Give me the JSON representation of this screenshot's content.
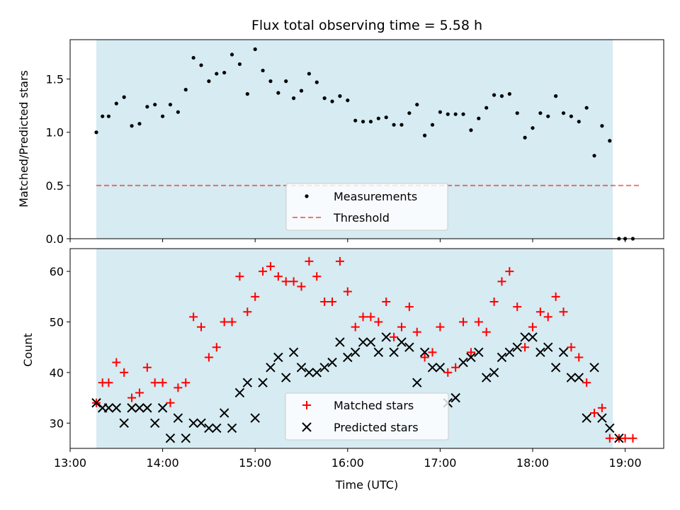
{
  "colors": {
    "background": "#ffffff",
    "observing_window": "#add8e6",
    "measurement": "#000000",
    "threshold": "#ff0000",
    "matched": "#ff0000",
    "predicted": "#000000"
  },
  "chart_data": [
    {
      "type": "scatter",
      "title": "Flux total observing time = 5.58 h",
      "xlabel": "",
      "ylabel": "Matched/Predicted stars",
      "x_axis": "time_utc",
      "xlim": [
        "13:00",
        "19:25"
      ],
      "ylim": [
        0,
        1.87
      ],
      "yticks": [
        0.0,
        0.5,
        1.0,
        1.5
      ],
      "ytick_labels": [
        "0.0",
        "0.5",
        "1.0",
        "1.5"
      ],
      "grid": false,
      "legend_position": "lower-center",
      "shaded_span": [
        "13:17",
        "18:52"
      ],
      "threshold": {
        "value": 0.5,
        "from": "13:17",
        "to": "19:10"
      },
      "legend": {
        "measurements_label": "Measurements",
        "threshold_label": "Threshold"
      },
      "series": [
        {
          "name": "Measurements",
          "marker": "dot",
          "x": [
            "13:17",
            "13:21",
            "13:25",
            "13:30",
            "13:35",
            "13:40",
            "13:45",
            "13:50",
            "13:55",
            "14:00",
            "14:05",
            "14:10",
            "14:15",
            "14:20",
            "14:25",
            "14:30",
            "14:35",
            "14:40",
            "14:45",
            "14:50",
            "14:55",
            "15:00",
            "15:05",
            "15:10",
            "15:15",
            "15:20",
            "15:25",
            "15:30",
            "15:35",
            "15:40",
            "15:45",
            "15:50",
            "15:55",
            "16:00",
            "16:05",
            "16:10",
            "16:15",
            "16:20",
            "16:25",
            "16:30",
            "16:35",
            "16:40",
            "16:45",
            "16:50",
            "16:55",
            "17:00",
            "17:05",
            "17:10",
            "17:15",
            "17:20",
            "17:25",
            "17:30",
            "17:35",
            "17:40",
            "17:45",
            "17:50",
            "17:55",
            "18:00",
            "18:05",
            "18:10",
            "18:15",
            "18:20",
            "18:25",
            "18:30",
            "18:35",
            "18:40",
            "18:45",
            "18:50",
            "18:56",
            "19:00",
            "19:05"
          ],
          "y": [
            1.0,
            1.15,
            1.15,
            1.27,
            1.33,
            1.06,
            1.08,
            1.24,
            1.26,
            1.15,
            1.26,
            1.19,
            1.4,
            1.7,
            1.63,
            1.48,
            1.55,
            1.56,
            1.73,
            1.64,
            1.36,
            1.78,
            1.58,
            1.48,
            1.37,
            1.48,
            1.32,
            1.39,
            1.55,
            1.47,
            1.32,
            1.29,
            1.34,
            1.3,
            1.11,
            1.1,
            1.1,
            1.13,
            1.14,
            1.07,
            1.07,
            1.18,
            1.26,
            0.97,
            1.07,
            1.19,
            1.17,
            1.17,
            1.17,
            1.02,
            1.13,
            1.23,
            1.35,
            1.34,
            1.36,
            1.18,
            0.95,
            1.04,
            1.18,
            1.15,
            1.34,
            1.18,
            1.15,
            1.1,
            1.23,
            0.78,
            1.06,
            0.92,
            0.0,
            0.0,
            0.0
          ]
        }
      ]
    },
    {
      "type": "scatter",
      "title": "",
      "xlabel": "Time (UTC)",
      "ylabel": "Count",
      "x_axis": "time_utc",
      "xlim": [
        "13:00",
        "19:25"
      ],
      "ylim": [
        25,
        64.5
      ],
      "yticks": [
        30,
        40,
        50,
        60
      ],
      "ytick_labels": [
        "30",
        "40",
        "50",
        "60"
      ],
      "xticks": [
        "13:00",
        "14:00",
        "15:00",
        "16:00",
        "17:00",
        "18:00",
        "19:00"
      ],
      "xtick_labels": [
        "13:00",
        "14:00",
        "15:00",
        "16:00",
        "17:00",
        "18:00",
        "19:00"
      ],
      "grid": false,
      "legend_position": "lower-center",
      "shaded_span": [
        "13:17",
        "18:52"
      ],
      "series": [
        {
          "name": "Matched stars",
          "marker": "plus",
          "x": [
            "13:17",
            "13:21",
            "13:25",
            "13:30",
            "13:35",
            "13:40",
            "13:45",
            "13:50",
            "13:55",
            "14:00",
            "14:05",
            "14:10",
            "14:15",
            "14:20",
            "14:25",
            "14:30",
            "14:35",
            "14:40",
            "14:45",
            "14:50",
            "14:55",
            "15:00",
            "15:05",
            "15:10",
            "15:15",
            "15:20",
            "15:25",
            "15:30",
            "15:35",
            "15:40",
            "15:45",
            "15:50",
            "15:55",
            "16:00",
            "16:05",
            "16:10",
            "16:15",
            "16:20",
            "16:25",
            "16:30",
            "16:35",
            "16:40",
            "16:45",
            "16:50",
            "16:55",
            "17:00",
            "17:05",
            "17:10",
            "17:15",
            "17:20",
            "17:25",
            "17:30",
            "17:35",
            "17:40",
            "17:45",
            "17:50",
            "17:55",
            "18:00",
            "18:05",
            "18:10",
            "18:15",
            "18:20",
            "18:25",
            "18:30",
            "18:35",
            "18:40",
            "18:45",
            "18:50",
            "18:56",
            "19:00",
            "19:05"
          ],
          "y": [
            34,
            38,
            38,
            42,
            40,
            35,
            36,
            41,
            38,
            38,
            34,
            37,
            38,
            51,
            49,
            43,
            45,
            50,
            50,
            59,
            52,
            55,
            60,
            61,
            59,
            58,
            58,
            57,
            62,
            59,
            54,
            54,
            62,
            56,
            49,
            51,
            51,
            50,
            54,
            47,
            49,
            53,
            48,
            43,
            44,
            49,
            40,
            41,
            50,
            44,
            50,
            48,
            54,
            58,
            60,
            53,
            45,
            49,
            52,
            51,
            55,
            52,
            45,
            43,
            38,
            32,
            33,
            27,
            27,
            27,
            27
          ]
        },
        {
          "name": "Predicted stars",
          "marker": "x",
          "x": [
            "13:17",
            "13:21",
            "13:25",
            "13:30",
            "13:35",
            "13:40",
            "13:45",
            "13:50",
            "13:55",
            "14:00",
            "14:05",
            "14:10",
            "14:15",
            "14:20",
            "14:25",
            "14:30",
            "14:35",
            "14:40",
            "14:45",
            "14:50",
            "14:55",
            "15:00",
            "15:05",
            "15:10",
            "15:15",
            "15:20",
            "15:25",
            "15:30",
            "15:35",
            "15:40",
            "15:45",
            "15:50",
            "15:55",
            "16:00",
            "16:05",
            "16:10",
            "16:15",
            "16:20",
            "16:25",
            "16:30",
            "16:35",
            "16:40",
            "16:45",
            "16:50",
            "16:55",
            "17:00",
            "17:05",
            "17:10",
            "17:15",
            "17:20",
            "17:25",
            "17:30",
            "17:35",
            "17:40",
            "17:45",
            "17:50",
            "17:55",
            "18:00",
            "18:05",
            "18:10",
            "18:15",
            "18:20",
            "18:25",
            "18:30",
            "18:35",
            "18:40",
            "18:45",
            "18:50",
            "18:56"
          ],
          "y": [
            34,
            33,
            33,
            33,
            30,
            33,
            33,
            33,
            30,
            33,
            27,
            31,
            27,
            30,
            30,
            29,
            29,
            32,
            29,
            36,
            38,
            31,
            38,
            41,
            43,
            39,
            44,
            41,
            40,
            40,
            41,
            42,
            46,
            43,
            44,
            46,
            46,
            44,
            47,
            44,
            46,
            45,
            38,
            44,
            41,
            41,
            34,
            35,
            42,
            43,
            44,
            39,
            40,
            43,
            44,
            45,
            47,
            47,
            44,
            45,
            41,
            44,
            39,
            39,
            31,
            41,
            31,
            29,
            27
          ]
        }
      ]
    }
  ]
}
